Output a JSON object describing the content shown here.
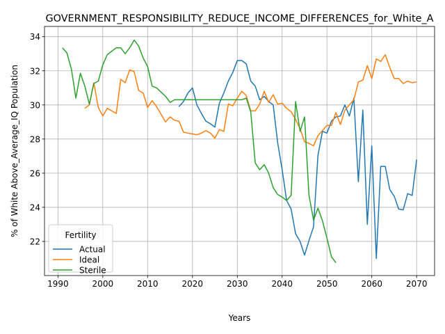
{
  "chart_data": {
    "type": "line",
    "title": "GOVERNMENT_RESPONSIBILITY_REDUCE_INCOME_DIFFERENCES_for_White_A",
    "xlabel": "Years",
    "ylabel": "% of White Above_Average_IQ Population",
    "xlim": [
      1987,
      2074
    ],
    "ylim": [
      20.0,
      34.6
    ],
    "xticks": [
      1990,
      2000,
      2010,
      2020,
      2030,
      2040,
      2050,
      2060,
      2070
    ],
    "yticks": [
      22,
      24,
      26,
      28,
      30,
      32,
      34
    ],
    "grid": true,
    "legend": {
      "title": "Fertility",
      "position": "lower-left"
    },
    "series": [
      {
        "name": "Actual",
        "color": "#1f77b4",
        "x": [
          2017,
          2018,
          2019,
          2020,
          2021,
          2022,
          2023,
          2024,
          2025,
          2026,
          2027,
          2028,
          2029,
          2030,
          2031,
          2032,
          2033,
          2034,
          2035,
          2036,
          2037,
          2038,
          2039,
          2040,
          2041,
          2042,
          2043,
          2044,
          2045,
          2046,
          2047,
          2048,
          2049,
          2050,
          2051,
          2052,
          2053,
          2054,
          2055,
          2056,
          2057,
          2058,
          2059,
          2060,
          2061,
          2062,
          2063,
          2064,
          2065,
          2066,
          2067,
          2068,
          2069,
          2070
        ],
        "y": [
          29.9,
          30.2,
          30.7,
          31.0,
          30.0,
          29.5,
          29.05,
          28.9,
          28.7,
          30.1,
          30.7,
          31.4,
          31.9,
          32.6,
          32.6,
          32.4,
          31.4,
          31.1,
          30.3,
          30.5,
          30.2,
          30.0,
          27.8,
          26.2,
          24.4,
          23.9,
          22.45,
          22.0,
          21.2,
          22.05,
          22.85,
          27.05,
          28.45,
          28.35,
          29.05,
          29.3,
          29.35,
          30.0,
          29.35,
          30.4,
          25.5,
          29.7,
          23.0,
          27.6,
          21.0,
          26.4,
          26.4,
          25.05,
          24.65,
          23.9,
          23.85,
          24.8,
          24.7,
          26.8
        ]
      },
      {
        "name": "Ideal",
        "color": "#ff7f0e",
        "x": [
          1996,
          1997,
          1998,
          1999,
          2000,
          2001,
          2002,
          2003,
          2004,
          2005,
          2006,
          2007,
          2008,
          2009,
          2010,
          2011,
          2012,
          2013,
          2014,
          2015,
          2016,
          2017,
          2018,
          2019,
          2020,
          2021,
          2022,
          2023,
          2024,
          2025,
          2026,
          2027,
          2028,
          2029,
          2030,
          2031,
          2032,
          2033,
          2034,
          2035,
          2036,
          2037,
          2038,
          2039,
          2040,
          2041,
          2042,
          2043,
          2044,
          2045,
          2046,
          2047,
          2048,
          2049,
          2050,
          2051,
          2052,
          2053,
          2054,
          2055,
          2056,
          2057,
          2058,
          2059,
          2060,
          2061,
          2062,
          2063,
          2064,
          2065,
          2066,
          2067,
          2068,
          2069,
          2070
        ],
        "y": [
          29.8,
          30.0,
          31.3,
          29.85,
          29.35,
          29.8,
          29.65,
          29.5,
          31.5,
          31.3,
          32.05,
          31.95,
          30.85,
          30.7,
          29.85,
          30.25,
          29.9,
          29.45,
          29.0,
          29.3,
          29.1,
          29.05,
          28.4,
          28.35,
          28.3,
          28.25,
          28.35,
          28.5,
          28.35,
          28.05,
          28.55,
          28.45,
          30.05,
          29.95,
          30.4,
          30.8,
          30.55,
          29.65,
          29.65,
          30.05,
          30.8,
          30.15,
          30.6,
          30.05,
          30.1,
          29.8,
          29.6,
          29.15,
          28.6,
          27.85,
          27.75,
          27.6,
          28.2,
          28.5,
          28.8,
          28.8,
          29.55,
          28.85,
          29.7,
          30.0,
          30.3,
          31.35,
          31.45,
          32.3,
          31.55,
          32.7,
          32.55,
          32.95,
          32.2,
          31.55,
          31.55,
          31.25,
          31.4,
          31.3,
          31.35
        ]
      },
      {
        "name": "Sterile",
        "color": "#2ca02c",
        "x": [
          1991,
          1992,
          1993,
          1994,
          1995,
          1996,
          1997,
          1998,
          1999,
          2000,
          2001,
          2002,
          2003,
          2004,
          2005,
          2006,
          2007,
          2008,
          2009,
          2010,
          2011,
          2012,
          2013,
          2014,
          2015,
          2016,
          2017,
          2018,
          2019,
          2020,
          2021,
          2022,
          2023,
          2024,
          2025,
          2026,
          2027,
          2028,
          2029,
          2030,
          2031,
          2032,
          2033,
          2034,
          2035,
          2036,
          2037,
          2038,
          2039,
          2040,
          2041,
          2042,
          2043,
          2044,
          2045,
          2046,
          2047,
          2048,
          2049,
          2050,
          2051,
          2052
        ],
        "y": [
          33.35,
          33.05,
          32.1,
          30.4,
          31.85,
          31.1,
          30.05,
          31.25,
          31.4,
          32.35,
          32.95,
          33.15,
          33.35,
          33.35,
          33.0,
          33.35,
          33.8,
          33.45,
          32.75,
          32.25,
          31.1,
          31.0,
          30.75,
          30.5,
          30.15,
          30.3,
          30.3,
          30.3,
          30.3,
          30.3,
          30.3,
          30.3,
          30.3,
          30.3,
          30.3,
          30.3,
          30.3,
          30.3,
          30.3,
          30.3,
          30.3,
          30.4,
          29.6,
          26.6,
          26.2,
          26.5,
          26.0,
          25.15,
          24.75,
          24.6,
          24.4,
          24.7,
          30.2,
          28.45,
          29.3,
          24.7,
          23.25,
          23.95,
          23.2,
          22.2,
          21.1,
          20.75
        ]
      }
    ]
  }
}
